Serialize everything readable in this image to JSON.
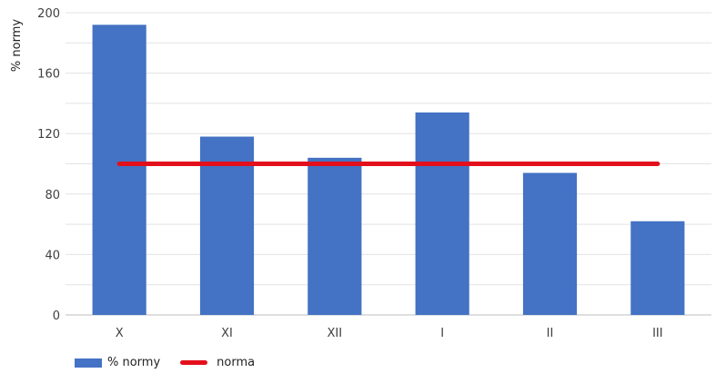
{
  "chart_data": {
    "type": "bar",
    "categories": [
      "X",
      "XI",
      "XII",
      "I",
      "II",
      "III"
    ],
    "series": [
      {
        "name": "% normy",
        "type": "bar",
        "values": [
          192,
          118,
          104,
          134,
          94,
          62
        ],
        "color": "#4472C4"
      },
      {
        "name": "norma",
        "type": "line",
        "values": [
          100,
          100,
          100,
          100,
          100,
          100
        ],
        "color": "#E3101C"
      }
    ],
    "ylabel": "% normy",
    "ylim": [
      0,
      200
    ],
    "yticks": [
      0,
      40,
      80,
      120,
      160,
      200
    ],
    "grid": true,
    "legend_position": "bottom-left"
  }
}
